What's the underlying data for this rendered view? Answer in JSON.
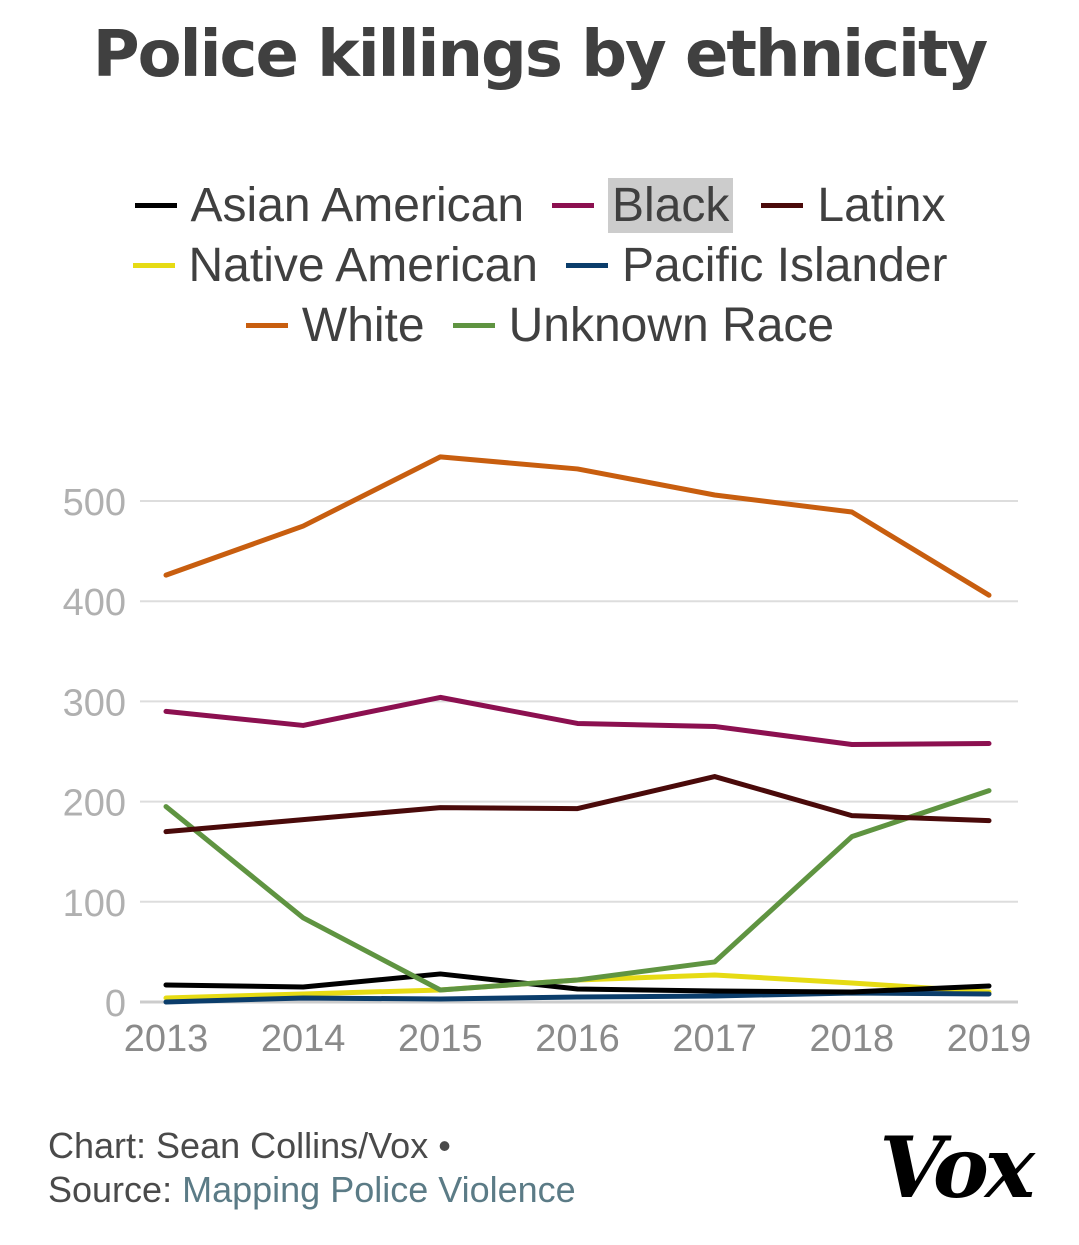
{
  "chart_data": {
    "type": "line",
    "title": "Police killings by ethnicity",
    "xlabel": "",
    "ylabel": "",
    "x": [
      "2013",
      "2014",
      "2015",
      "2016",
      "2017",
      "2018",
      "2019"
    ],
    "ylim": [
      0,
      550
    ],
    "yticks": [
      0,
      100,
      200,
      300,
      400,
      500
    ],
    "grid": true,
    "legend_position": "top",
    "series": [
      {
        "name": "Asian American",
        "color": "#000000",
        "values": [
          17,
          15,
          28,
          13,
          11,
          10,
          16
        ]
      },
      {
        "name": "Black",
        "color": "#8c1050",
        "values": [
          290,
          276,
          304,
          278,
          275,
          257,
          258
        ]
      },
      {
        "name": "Latinx",
        "color": "#4a0a0a",
        "values": [
          170,
          182,
          194,
          193,
          225,
          186,
          181
        ]
      },
      {
        "name": "Native American",
        "color": "#e6db14",
        "values": [
          4,
          8,
          12,
          22,
          27,
          19,
          10
        ]
      },
      {
        "name": "Pacific Islander",
        "color": "#0b3d6b",
        "values": [
          0,
          4,
          3,
          5,
          6,
          9,
          8
        ]
      },
      {
        "name": "White",
        "color": "#c85e0f",
        "values": [
          426,
          475,
          544,
          532,
          506,
          489,
          406
        ]
      },
      {
        "name": "Unknown Race",
        "color": "#5f9441",
        "values": [
          195,
          84,
          12,
          22,
          40,
          165,
          211
        ]
      }
    ]
  },
  "legend_rows": [
    [
      0,
      1,
      2
    ],
    [
      3,
      4
    ],
    [
      5,
      6
    ]
  ],
  "highlighted_legend": "Black",
  "footer": {
    "credit": "Chart: Sean Collins/Vox •",
    "source_label": "Source:",
    "source_link": "Mapping Police Violence"
  },
  "logo_text": "Vox"
}
